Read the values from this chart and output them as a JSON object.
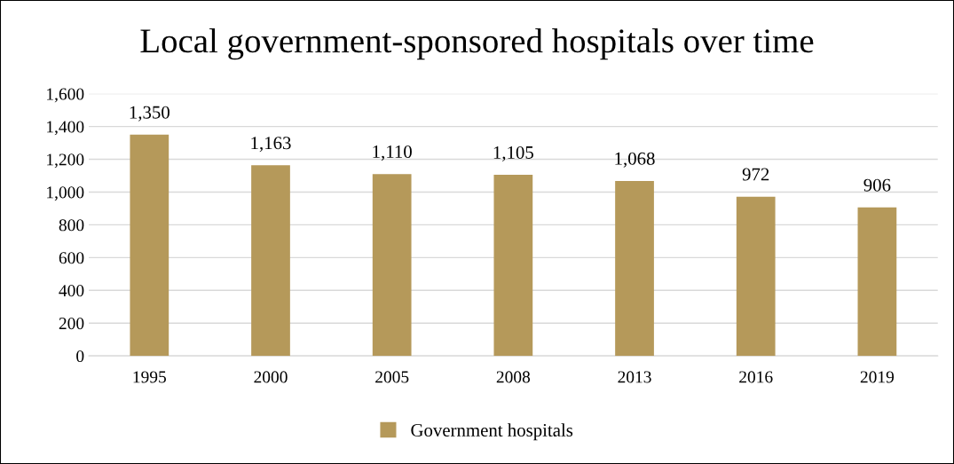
{
  "chart_data": {
    "type": "bar",
    "title": "Local government-sponsored hospitals over time",
    "categories": [
      "1995",
      "2000",
      "2005",
      "2008",
      "2013",
      "2016",
      "2019"
    ],
    "series": [
      {
        "name": "Government hospitals",
        "color": "#b5995a",
        "values": [
          1350,
          1163,
          1110,
          1105,
          1068,
          972,
          906
        ],
        "value_labels": [
          "1,350",
          "1,163",
          "1,110",
          "1,105",
          "1,068",
          "972",
          "906"
        ]
      }
    ],
    "ylim": [
      0,
      1600
    ],
    "yticks": [
      0,
      200,
      400,
      600,
      800,
      {
        "value": 1000,
        "label": "1,000"
      },
      {
        "value": 1200,
        "label": "1,200"
      },
      {
        "value": 1400,
        "label": "1,400"
      },
      {
        "value": 1600,
        "label": "1,600"
      }
    ],
    "grid": "y",
    "legend": "bottom"
  }
}
